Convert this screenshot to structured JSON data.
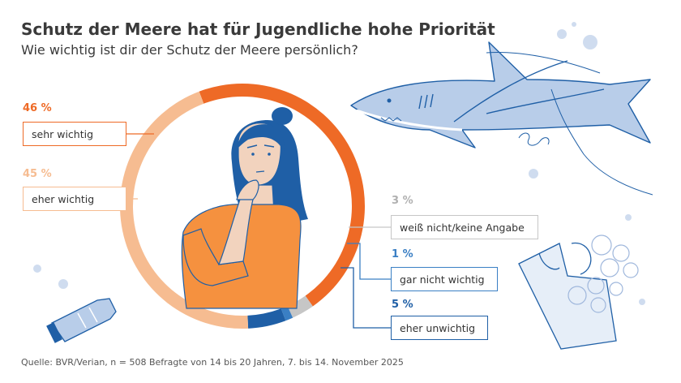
{
  "header": {
    "title": "Schutz der Meere hat für Jugendliche hohe Priorität",
    "subtitle": "Wie wichtig ist dir der Schutz der Meere persönlich?"
  },
  "footer": {
    "source": "Quelle: BVR/Verian, n = 508 Befragte von 14 bis 20 Jahren, 7. bis 14. November 2025"
  },
  "colors": {
    "sehr_wichtig": "#ee6a26",
    "eher_wichtig": "#f6bc91",
    "weiss_nicht": "#c6c6c6",
    "gar_nicht": "#3a7fc4",
    "eher_unwichtig": "#1f5fa6",
    "title": "#3a3a3a",
    "illustration_blue": "#1f5fa6",
    "light_blue": "#cfdcef"
  },
  "illustrations": [
    "person-thinking-icon",
    "shark-icon",
    "plastic-bag-icon",
    "plastic-bottle-icon"
  ],
  "chart_data": {
    "type": "pie",
    "variant": "donut",
    "title": "Schutz der Meere hat für Jugendliche hohe Priorität",
    "subtitle": "Wie wichtig ist dir der Schutz der Meere persönlich?",
    "unit": "%",
    "slices": [
      {
        "label": "sehr wichtig",
        "value": 46,
        "display": "46 %",
        "color": "#ee6a26"
      },
      {
        "label": "weiß nicht/keine Angabe",
        "value": 3,
        "display": "3 %",
        "color": "#c6c6c6"
      },
      {
        "label": "gar nicht wichtig",
        "value": 1,
        "display": "1 %",
        "color": "#3a7fc4"
      },
      {
        "label": "eher unwichtig",
        "value": 5,
        "display": "5 %",
        "color": "#1f5fa6"
      },
      {
        "label": "eher wichtig",
        "value": 45,
        "display": "45 %",
        "color": "#f6bc91"
      }
    ]
  }
}
